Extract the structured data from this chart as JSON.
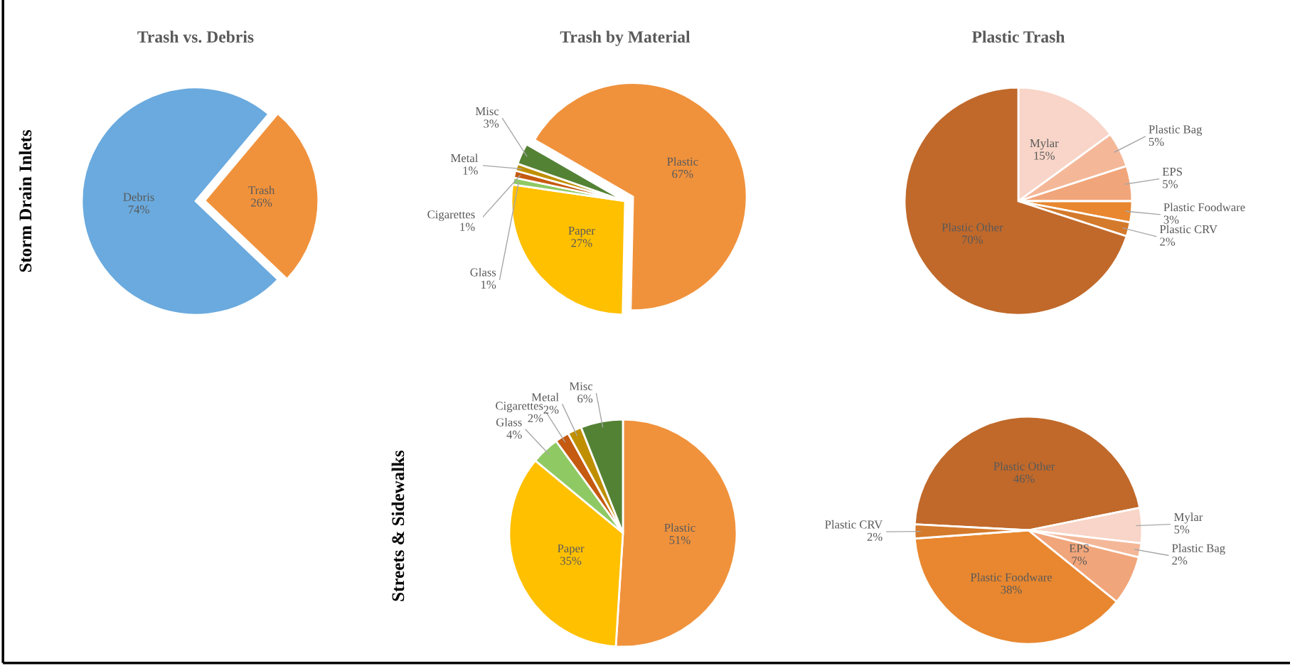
{
  "chart_data": [
    {
      "type": "pie",
      "title": "Trash vs. Debris",
      "annotations": [
        "Storm Drain Inlets"
      ],
      "categories": [
        "Debris",
        "Trash"
      ],
      "values": [
        74,
        26
      ],
      "value_labels": [
        "74%",
        "26%"
      ],
      "colors": [
        "#6aaade",
        "#f0923c"
      ]
    },
    {
      "type": "pie",
      "title": "Trash by Material",
      "categories": [
        "Plastic",
        "Paper",
        "Glass",
        "Cigarettes",
        "Metal",
        "Misc"
      ],
      "values": [
        67,
        27,
        1,
        1,
        1,
        3
      ],
      "value_labels": [
        "67%",
        "27%",
        "1%",
        "1%",
        "1%",
        "3%"
      ],
      "colors": [
        "#f0923c",
        "#ffc000",
        "#8fc964",
        "#c55a11",
        "#bf8f00",
        "#548235"
      ]
    },
    {
      "type": "pie",
      "title": "Plastic Trash",
      "categories": [
        "Mylar",
        "Plastic Bag",
        "EPS",
        "Plastic Foodware",
        "Plastic CRV",
        "Plastic Other"
      ],
      "values": [
        15,
        5,
        5,
        3,
        2,
        70
      ],
      "value_labels": [
        "15%",
        "5%",
        "5%",
        "3%",
        "2%",
        "70%"
      ],
      "colors": [
        "#f8d5c8",
        "#f4b899",
        "#f1a57a",
        "#e8872f",
        "#d47a2c",
        "#c0692b"
      ]
    },
    {
      "type": "pie",
      "annotations": [
        "Streets & Sidewalks"
      ],
      "categories": [
        "Plastic",
        "Paper",
        "Glass",
        "Cigarettes",
        "Metal",
        "Misc"
      ],
      "values": [
        51,
        35,
        4,
        2,
        2,
        6
      ],
      "value_labels": [
        "51%",
        "35%",
        "4%",
        "2%",
        "2%",
        "6%"
      ],
      "colors": [
        "#f0923c",
        "#ffc000",
        "#8fc964",
        "#c55a11",
        "#bf8f00",
        "#548235"
      ]
    },
    {
      "type": "pie",
      "categories": [
        "Plastic Other",
        "Mylar",
        "Plastic Bag",
        "EPS",
        "Plastic Foodware",
        "Plastic CRV"
      ],
      "values": [
        46,
        5,
        2,
        7,
        38,
        2
      ],
      "value_labels": [
        "46%",
        "5%",
        "2%",
        "7%",
        "38%",
        "2%"
      ],
      "colors": [
        "#c0692b",
        "#f8d5c8",
        "#f4b899",
        "#f1a57a",
        "#e8872f",
        "#d47a2c"
      ]
    }
  ]
}
